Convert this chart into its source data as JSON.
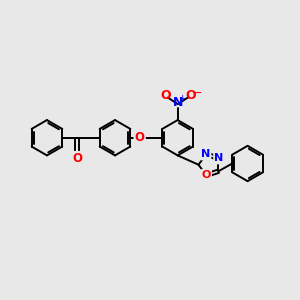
{
  "background_color": "#e8e8e8",
  "bond_color": "#000000",
  "bond_width": 1.4,
  "atom_colors": {
    "O": "#ff0000",
    "N": "#0000ff",
    "C": "#000000"
  },
  "figsize": [
    3.0,
    3.0
  ],
  "dpi": 100,
  "xlim": [
    0,
    12
  ],
  "ylim": [
    0,
    12
  ]
}
